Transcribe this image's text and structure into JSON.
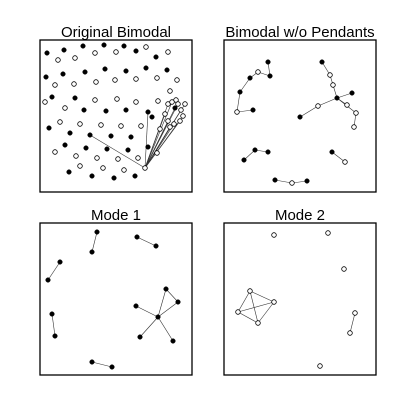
{
  "panels": [
    {
      "title": "Original Bimodal",
      "nodes": [
        [
          47,
          53,
          "f"
        ],
        [
          58,
          60,
          "o"
        ],
        [
          64,
          50,
          "f"
        ],
        [
          75,
          58,
          "o"
        ],
        [
          83,
          46,
          "f"
        ],
        [
          95,
          53,
          "o"
        ],
        [
          104,
          45,
          "f"
        ],
        [
          116,
          52,
          "o"
        ],
        [
          124,
          46,
          "f"
        ],
        [
          136,
          51,
          "f"
        ],
        [
          146,
          47,
          "o"
        ],
        [
          156,
          57,
          "f"
        ],
        [
          168,
          52,
          "o"
        ],
        [
          46,
          77,
          "f"
        ],
        [
          55,
          85,
          "o"
        ],
        [
          63,
          74,
          "f"
        ],
        [
          74,
          84,
          "o"
        ],
        [
          85,
          72,
          "f"
        ],
        [
          96,
          82,
          "o"
        ],
        [
          105,
          69,
          "f"
        ],
        [
          115,
          80,
          "o"
        ],
        [
          126,
          71,
          "f"
        ],
        [
          136,
          79,
          "o"
        ],
        [
          146,
          68,
          "f"
        ],
        [
          157,
          78,
          "o"
        ],
        [
          167,
          70,
          "f"
        ],
        [
          177,
          80,
          "o"
        ],
        [
          45,
          102,
          "o"
        ],
        [
          52,
          97,
          "f"
        ],
        [
          65,
          108,
          "o"
        ],
        [
          75,
          98,
          "f"
        ],
        [
          84,
          110,
          "f"
        ],
        [
          95,
          100,
          "o"
        ],
        [
          106,
          111,
          "f"
        ],
        [
          117,
          99,
          "o"
        ],
        [
          126,
          110,
          "f"
        ],
        [
          136,
          102,
          "o"
        ],
        [
          148,
          112,
          "f"
        ],
        [
          158,
          101,
          "o"
        ],
        [
          170,
          91,
          "o"
        ],
        [
          176,
          100,
          "o"
        ],
        [
          49,
          128,
          "f"
        ],
        [
          60,
          122,
          "o"
        ],
        [
          70,
          133,
          "f"
        ],
        [
          80,
          124,
          "o"
        ],
        [
          90,
          135,
          "f"
        ],
        [
          101,
          125,
          "o"
        ],
        [
          111,
          136,
          "f"
        ],
        [
          121,
          126,
          "o"
        ],
        [
          131,
          137,
          "f"
        ],
        [
          141,
          126,
          "o"
        ],
        [
          152,
          117,
          "f"
        ],
        [
          160,
          129,
          "o"
        ],
        [
          55,
          152,
          "o"
        ],
        [
          65,
          145,
          "f"
        ],
        [
          76,
          156,
          "o"
        ],
        [
          86,
          148,
          "f"
        ],
        [
          97,
          158,
          "o"
        ],
        [
          107,
          149,
          "f"
        ],
        [
          118,
          159,
          "o"
        ],
        [
          128,
          150,
          "f"
        ],
        [
          138,
          158,
          "o"
        ],
        [
          148,
          147,
          "f"
        ],
        [
          157,
          153,
          "o"
        ],
        [
          69,
          172,
          "f"
        ],
        [
          80,
          166,
          "o"
        ],
        [
          92,
          176,
          "f"
        ],
        [
          103,
          168,
          "o"
        ],
        [
          114,
          178,
          "f"
        ],
        [
          124,
          170,
          "o"
        ],
        [
          135,
          176,
          "f"
        ],
        [
          145,
          168,
          "o"
        ],
        [
          175,
          108,
          "f"
        ],
        [
          168,
          104,
          "o"
        ],
        [
          172,
          102,
          "o"
        ],
        [
          178,
          104,
          "o"
        ],
        [
          181,
          110,
          "o"
        ],
        [
          183,
          116,
          "o"
        ],
        [
          180,
          121,
          "o"
        ],
        [
          174,
          124,
          "o"
        ],
        [
          168,
          121,
          "o"
        ],
        [
          165,
          114,
          "o"
        ],
        [
          170,
          127,
          "o"
        ],
        [
          185,
          104,
          "o"
        ]
      ],
      "edges": [
        [
          71,
          72
        ],
        [
          71,
          73
        ],
        [
          71,
          74
        ],
        [
          71,
          75
        ],
        [
          71,
          76
        ],
        [
          71,
          77
        ],
        [
          71,
          78
        ],
        [
          71,
          79
        ],
        [
          71,
          80
        ],
        [
          71,
          81
        ],
        [
          71,
          82
        ],
        [
          71,
          83
        ],
        [
          71,
          37
        ],
        [
          71,
          45
        ]
      ]
    },
    {
      "title": "Bimodal w/o Pendants",
      "nodes": [
        [
          250,
          78,
          "f"
        ],
        [
          258,
          72,
          "o"
        ],
        [
          270,
          76,
          "f"
        ],
        [
          268,
          62,
          "f"
        ],
        [
          240,
          92,
          "f"
        ],
        [
          237,
          112,
          "o"
        ],
        [
          253,
          110,
          "f"
        ],
        [
          322,
          62,
          "f"
        ],
        [
          330,
          75,
          "o"
        ],
        [
          333,
          85,
          "o"
        ],
        [
          337,
          98,
          "f"
        ],
        [
          318,
          106,
          "o"
        ],
        [
          300,
          117,
          "f"
        ],
        [
          347,
          105,
          "o"
        ],
        [
          352,
          93,
          "f"
        ],
        [
          356,
          113,
          "o"
        ],
        [
          354,
          127,
          "o"
        ],
        [
          255,
          150,
          "f"
        ],
        [
          268,
          152,
          "f"
        ],
        [
          244,
          160,
          "f"
        ],
        [
          332,
          152,
          "f"
        ],
        [
          345,
          162,
          "o"
        ],
        [
          275,
          180,
          "f"
        ],
        [
          292,
          183,
          "o"
        ],
        [
          307,
          181,
          "f"
        ]
      ],
      "edges": [
        [
          0,
          1
        ],
        [
          1,
          2
        ],
        [
          2,
          3
        ],
        [
          0,
          4
        ],
        [
          4,
          5
        ],
        [
          5,
          6
        ],
        [
          7,
          8
        ],
        [
          8,
          9
        ],
        [
          9,
          10
        ],
        [
          10,
          11
        ],
        [
          11,
          12
        ],
        [
          10,
          13
        ],
        [
          10,
          14
        ],
        [
          10,
          15
        ],
        [
          15,
          16
        ],
        [
          17,
          18
        ],
        [
          17,
          19
        ],
        [
          20,
          21
        ],
        [
          22,
          23
        ],
        [
          23,
          24
        ]
      ]
    },
    {
      "title": "Mode 1",
      "nodes": [
        [
          97,
          232,
          "f"
        ],
        [
          92,
          252,
          "f"
        ],
        [
          137,
          237,
          "f"
        ],
        [
          156,
          246,
          "f"
        ],
        [
          60,
          262,
          "f"
        ],
        [
          48,
          280,
          "f"
        ],
        [
          52,
          314,
          "f"
        ],
        [
          55,
          336,
          "f"
        ],
        [
          166,
          289,
          "f"
        ],
        [
          178,
          302,
          "f"
        ],
        [
          136,
          306,
          "f"
        ],
        [
          158,
          317,
          "f"
        ],
        [
          140,
          337,
          "f"
        ],
        [
          173,
          341,
          "f"
        ],
        [
          92,
          362,
          "f"
        ],
        [
          112,
          367,
          "f"
        ]
      ],
      "edges": [
        [
          0,
          1
        ],
        [
          2,
          3
        ],
        [
          4,
          5
        ],
        [
          6,
          7
        ],
        [
          8,
          9
        ],
        [
          8,
          11
        ],
        [
          10,
          11
        ],
        [
          11,
          12
        ],
        [
          11,
          13
        ],
        [
          11,
          9
        ],
        [
          14,
          15
        ]
      ]
    },
    {
      "title": "Mode 2",
      "nodes": [
        [
          274,
          235,
          "o"
        ],
        [
          328,
          233,
          "o"
        ],
        [
          344,
          269,
          "o"
        ],
        [
          250,
          291,
          "o"
        ],
        [
          274,
          302,
          "o"
        ],
        [
          238,
          312,
          "o"
        ],
        [
          258,
          323,
          "o"
        ],
        [
          355,
          313,
          "o"
        ],
        [
          350,
          333,
          "o"
        ],
        [
          320,
          366,
          "o"
        ]
      ],
      "edges": [
        [
          3,
          4
        ],
        [
          3,
          5
        ],
        [
          3,
          6
        ],
        [
          4,
          5
        ],
        [
          4,
          6
        ],
        [
          5,
          6
        ],
        [
          7,
          8
        ]
      ]
    }
  ]
}
